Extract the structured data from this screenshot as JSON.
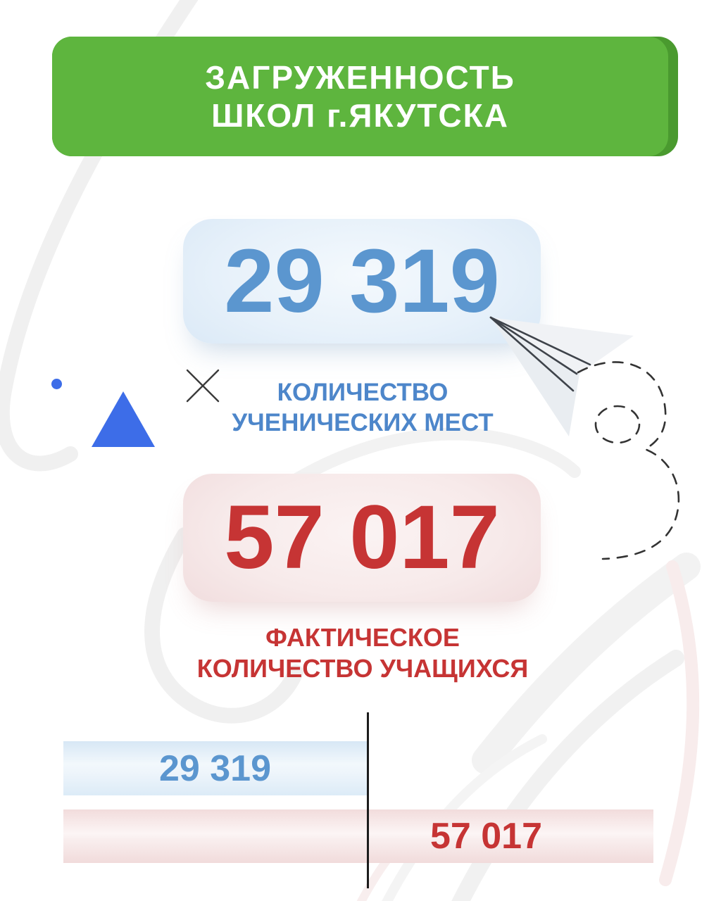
{
  "header": {
    "title_line1": "ЗАГРУЖЕННОСТЬ",
    "title_line2": "ШКОЛ г.ЯКУТСКА"
  },
  "capacity": {
    "value": "29 319",
    "label_line1": "КОЛИЧЕСТВО",
    "label_line2": "УЧЕНИЧЕСКИХ МЕСТ"
  },
  "students": {
    "value": "57 017",
    "label_line1": "ФАКТИЧЕСКОЕ",
    "label_line2": "КОЛИЧЕСТВО УЧАЩИХСЯ"
  },
  "bars": {
    "capacity_value_label": "29 319",
    "students_value_label": "57 017"
  },
  "chart_data": {
    "type": "bar",
    "orientation": "horizontal",
    "title": "Загруженность школ г.Якутска",
    "categories": [
      "Количество ученических мест",
      "Фактическое количество учащихся"
    ],
    "values": [
      29319,
      57017
    ],
    "value_labels": [
      "29 319",
      "57 017"
    ],
    "series_colors": [
      "#5b96cf",
      "#c63434"
    ],
    "bar_fill_colors": [
      "#e3eef8",
      "#f4dfdf"
    ],
    "reference_line": {
      "at_value": 29319,
      "meaning": "capacity limit marker"
    },
    "grid": false,
    "legend": false
  },
  "colors": {
    "header_green": "#5eb53e",
    "header_green_dark": "#4a9a2f",
    "header_text": "#ffffff",
    "accent_blue": "#3d6de8",
    "number_blue": "#5b96cf",
    "label_blue": "#4d86ca",
    "card_blue_bg": "#d9e8f6",
    "number_red": "#c63434",
    "card_red_bg": "#f0dbdc",
    "reference_line": "#1c1c1c"
  }
}
